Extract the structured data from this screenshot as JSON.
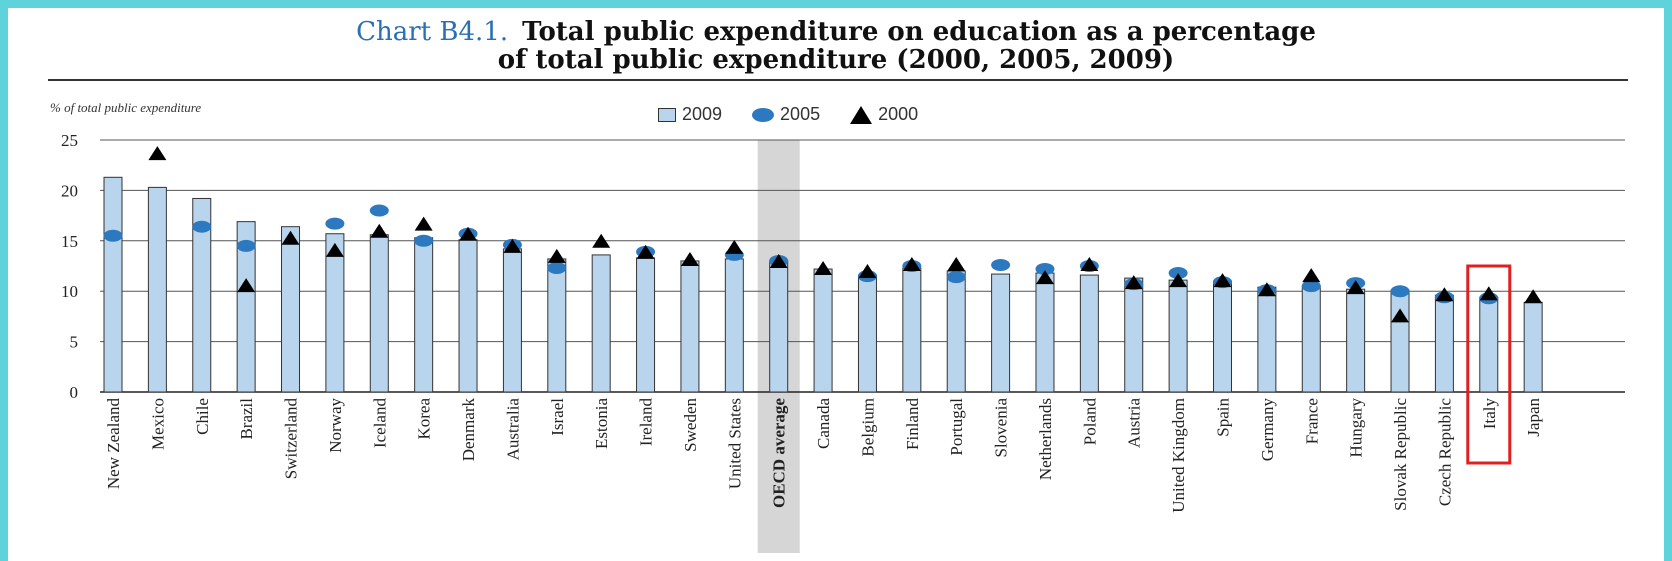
{
  "title": {
    "prefix": "Chart B4.1.",
    "line1": "Total public expenditure on education as a percentage",
    "line2": "of total public expenditure (2000, 2005, 2009)"
  },
  "colors": {
    "bar": "#b9d5ee",
    "bar_edge": "#333333",
    "dot": "#2d79c0",
    "triangle": "#000000",
    "highlight_bg": "#d6d6d6",
    "highlight_box": "#e02020",
    "title_prefix": "#2a6fb3"
  },
  "chart_data": {
    "type": "bar",
    "ylabel": "% of total public expenditure",
    "ylim": [
      0,
      25
    ],
    "yticks": [
      0,
      5,
      10,
      15,
      20,
      25
    ],
    "grid": true,
    "legend_position": "top-center",
    "highlighted_category": "OECD average",
    "boxed_category": "Italy",
    "categories": [
      "New Zealand",
      "Mexico",
      "Chile",
      "Brazil",
      "Switzerland",
      "Norway",
      "Iceland",
      "Korea",
      "Denmark",
      "Australia",
      "Israel",
      "Estonia",
      "Ireland",
      "Sweden",
      "United States",
      "OECD average",
      "Canada",
      "Belgium",
      "Finland",
      "Portugal",
      "Slovenia",
      "Netherlands",
      "Poland",
      "Austria",
      "United Kingdom",
      "Spain",
      "Germany",
      "France",
      "Hungary",
      "Slovak Republic",
      "Czech Republic",
      "Italy",
      "Japan"
    ],
    "series": [
      {
        "name": "2009",
        "marker": "bar",
        "values": [
          21.3,
          20.3,
          19.2,
          16.9,
          16.4,
          15.7,
          15.6,
          15.3,
          15.1,
          14.2,
          13.2,
          13.6,
          13.3,
          13.0,
          13.2,
          13.0,
          12.2,
          11.6,
          12.3,
          12.0,
          11.7,
          11.8,
          11.6,
          11.3,
          11.1,
          11.0,
          10.4,
          10.5,
          10.2,
          10.1,
          9.6,
          9.4,
          8.9
        ]
      },
      {
        "name": "2005",
        "marker": "circle",
        "values": [
          15.5,
          null,
          16.4,
          14.5,
          null,
          16.7,
          18.0,
          15.0,
          15.7,
          14.6,
          12.3,
          null,
          13.9,
          null,
          13.6,
          13.0,
          null,
          11.5,
          12.5,
          11.4,
          12.6,
          12.2,
          12.5,
          10.7,
          11.8,
          10.9,
          10.1,
          10.5,
          10.8,
          10.0,
          9.4,
          9.3,
          null
        ]
      },
      {
        "name": "2000",
        "marker": "triangle",
        "values": [
          null,
          23.6,
          null,
          10.5,
          15.2,
          14.0,
          15.9,
          16.6,
          15.6,
          14.4,
          13.4,
          14.9,
          13.8,
          13.1,
          14.3,
          12.9,
          12.2,
          11.9,
          12.6,
          12.6,
          null,
          11.3,
          12.6,
          10.8,
          11.0,
          11.0,
          10.1,
          11.5,
          10.3,
          7.5,
          9.6,
          9.7,
          9.4
        ]
      }
    ]
  }
}
